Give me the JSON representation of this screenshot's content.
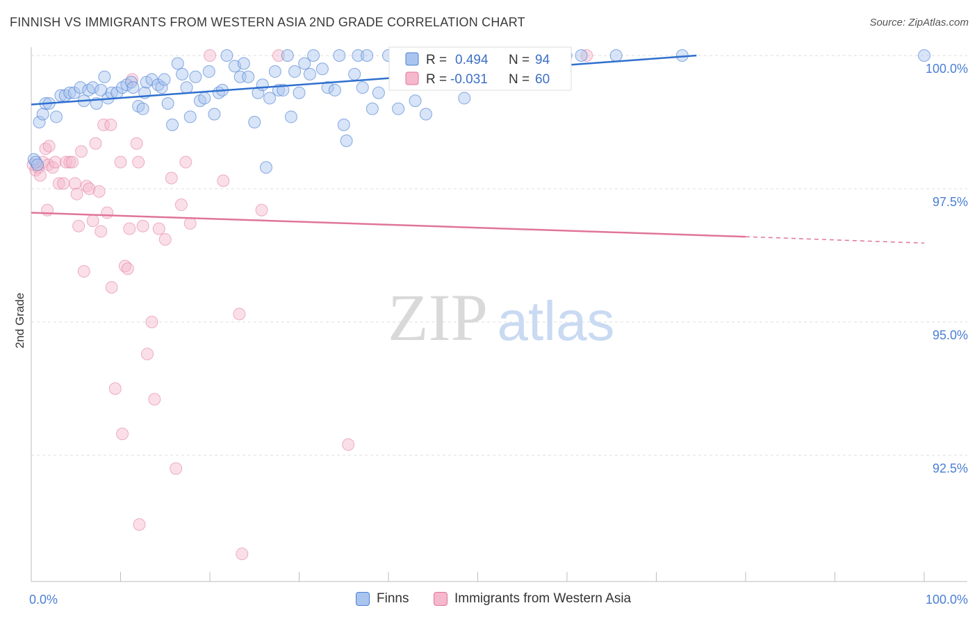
{
  "header": {
    "title": "FINNISH VS IMMIGRANTS FROM WESTERN ASIA 2ND GRADE CORRELATION CHART",
    "source": "Source: ZipAtlas.com"
  },
  "watermark": {
    "zip": "ZIP",
    "atlas": "atlas"
  },
  "legend_top": {
    "rows": [
      {
        "r_label": "R =",
        "r_value": "0.494",
        "n_label": "N =",
        "n_value": "94"
      },
      {
        "r_label": "R =",
        "r_value": "-0.031",
        "n_label": "N =",
        "n_value": "60"
      }
    ]
  },
  "chart_data": {
    "type": "scatter",
    "title": "FINNISH VS IMMIGRANTS FROM WESTERN ASIA 2ND GRADE CORRELATION CHART",
    "xlabel": "",
    "ylabel": "2nd Grade",
    "xlim": [
      0,
      100
    ],
    "ylim": [
      90.25,
      100.35
    ],
    "x_tick_labels": [
      "0.0%",
      "100.0%"
    ],
    "y_ticks": [
      92.5,
      95.0,
      97.5,
      100.0
    ],
    "y_tick_labels": [
      "92.5%",
      "95.0%",
      "97.5%",
      "100.0%"
    ],
    "grid": true,
    "legend_placement": "bottom",
    "colors": {
      "finns": "#4a7fd4",
      "finns_fill": "#a9c4ee",
      "wa": "#e0749a",
      "wa_fill": "#f5b8cc"
    },
    "series": [
      {
        "name": "Finns",
        "r": 0.494,
        "n": 94,
        "trend": {
          "x": [
            0,
            74.5
          ],
          "y": [
            99.08,
            100.0
          ]
        },
        "points": [
          [
            0.3,
            98.05
          ],
          [
            0.5,
            98.0
          ],
          [
            0.7,
            97.95
          ],
          [
            0.9,
            98.75
          ],
          [
            1.3,
            98.9
          ],
          [
            1.6,
            99.1
          ],
          [
            2.0,
            99.1
          ],
          [
            2.8,
            98.85
          ],
          [
            3.3,
            99.25
          ],
          [
            3.8,
            99.25
          ],
          [
            4.3,
            99.3
          ],
          [
            4.8,
            99.3
          ],
          [
            5.5,
            99.4
          ],
          [
            5.9,
            99.15
          ],
          [
            6.4,
            99.35
          ],
          [
            6.9,
            99.4
          ],
          [
            7.3,
            99.1
          ],
          [
            7.8,
            99.35
          ],
          [
            8.2,
            99.6
          ],
          [
            8.6,
            99.2
          ],
          [
            9.0,
            99.3
          ],
          [
            9.6,
            99.3
          ],
          [
            10.2,
            99.4
          ],
          [
            10.7,
            99.45
          ],
          [
            11.2,
            99.5
          ],
          [
            11.4,
            99.4
          ],
          [
            12.0,
            99.05
          ],
          [
            12.5,
            99.0
          ],
          [
            12.7,
            99.3
          ],
          [
            12.9,
            99.5
          ],
          [
            13.5,
            99.55
          ],
          [
            14.2,
            99.45
          ],
          [
            14.6,
            99.4
          ],
          [
            14.9,
            99.55
          ],
          [
            15.3,
            99.1
          ],
          [
            15.8,
            98.7
          ],
          [
            16.4,
            99.85
          ],
          [
            16.9,
            99.65
          ],
          [
            17.4,
            99.4
          ],
          [
            17.8,
            98.85
          ],
          [
            18.4,
            99.6
          ],
          [
            18.9,
            99.15
          ],
          [
            19.4,
            99.2
          ],
          [
            19.9,
            99.7
          ],
          [
            20.5,
            98.9
          ],
          [
            21.0,
            99.3
          ],
          [
            21.4,
            99.35
          ],
          [
            21.9,
            100.0
          ],
          [
            22.8,
            99.8
          ],
          [
            23.4,
            99.6
          ],
          [
            23.8,
            99.85
          ],
          [
            24.3,
            99.6
          ],
          [
            25.0,
            98.75
          ],
          [
            25.4,
            99.3
          ],
          [
            25.9,
            99.45
          ],
          [
            26.3,
            97.9
          ],
          [
            26.7,
            99.2
          ],
          [
            27.3,
            99.7
          ],
          [
            27.7,
            99.35
          ],
          [
            28.2,
            99.35
          ],
          [
            28.7,
            100.0
          ],
          [
            29.1,
            98.85
          ],
          [
            29.5,
            99.7
          ],
          [
            30.0,
            99.3
          ],
          [
            30.6,
            99.85
          ],
          [
            31.2,
            99.65
          ],
          [
            31.6,
            100.0
          ],
          [
            32.6,
            99.75
          ],
          [
            33.2,
            99.4
          ],
          [
            34.0,
            99.35
          ],
          [
            34.5,
            100.0
          ],
          [
            35.0,
            98.7
          ],
          [
            35.3,
            98.4
          ],
          [
            36.2,
            99.65
          ],
          [
            36.6,
            100.0
          ],
          [
            37.1,
            99.4
          ],
          [
            37.6,
            100.0
          ],
          [
            38.2,
            99.0
          ],
          [
            38.9,
            99.3
          ],
          [
            40.0,
            100.0
          ],
          [
            41.1,
            99.0
          ],
          [
            41.8,
            100.0
          ],
          [
            43.0,
            99.15
          ],
          [
            44.2,
            98.9
          ],
          [
            45.8,
            100.0
          ],
          [
            48.5,
            99.2
          ],
          [
            50.0,
            100.0
          ],
          [
            54.0,
            100.0
          ],
          [
            55.3,
            100.0
          ],
          [
            59.9,
            100.0
          ],
          [
            61.6,
            100.0
          ],
          [
            65.5,
            100.0
          ],
          [
            72.9,
            100.0
          ],
          [
            100.0,
            100.0
          ]
        ]
      },
      {
        "name": "Immigrants from Western Asia",
        "r": -0.031,
        "n": 60,
        "trend": {
          "x": [
            0,
            80
          ],
          "y": [
            97.05,
            96.6
          ]
        },
        "trend_dashed": {
          "x": [
            80,
            100
          ],
          "y": [
            96.6,
            96.48
          ]
        },
        "points": [
          [
            0.2,
            97.95
          ],
          [
            0.5,
            97.85
          ],
          [
            0.8,
            97.9
          ],
          [
            1.0,
            97.75
          ],
          [
            1.3,
            98.0
          ],
          [
            1.6,
            98.25
          ],
          [
            1.8,
            97.1
          ],
          [
            1.9,
            97.95
          ],
          [
            2.0,
            98.3
          ],
          [
            2.4,
            97.9
          ],
          [
            2.7,
            98.0
          ],
          [
            3.1,
            97.6
          ],
          [
            3.6,
            97.6
          ],
          [
            3.9,
            98.0
          ],
          [
            4.3,
            98.0
          ],
          [
            4.6,
            98.0
          ],
          [
            4.9,
            97.6
          ],
          [
            5.1,
            97.4
          ],
          [
            5.3,
            96.8
          ],
          [
            5.6,
            98.2
          ],
          [
            5.9,
            95.95
          ],
          [
            6.2,
            97.55
          ],
          [
            6.5,
            97.5
          ],
          [
            6.9,
            96.9
          ],
          [
            7.2,
            98.35
          ],
          [
            7.6,
            97.45
          ],
          [
            7.8,
            96.7
          ],
          [
            8.1,
            98.7
          ],
          [
            8.5,
            97.05
          ],
          [
            8.9,
            98.7
          ],
          [
            9.0,
            95.65
          ],
          [
            9.4,
            93.75
          ],
          [
            10.0,
            98.0
          ],
          [
            10.2,
            92.9
          ],
          [
            10.5,
            96.05
          ],
          [
            10.8,
            96.0
          ],
          [
            11.0,
            96.75
          ],
          [
            11.3,
            99.55
          ],
          [
            11.8,
            98.35
          ],
          [
            12.0,
            98.0
          ],
          [
            12.5,
            96.8
          ],
          [
            13.0,
            94.4
          ],
          [
            13.5,
            95.0
          ],
          [
            13.8,
            93.55
          ],
          [
            14.3,
            96.75
          ],
          [
            15.0,
            96.55
          ],
          [
            15.7,
            97.7
          ],
          [
            16.2,
            92.25
          ],
          [
            16.8,
            97.2
          ],
          [
            17.3,
            98.0
          ],
          [
            17.8,
            96.85
          ],
          [
            20.0,
            100.0
          ],
          [
            21.5,
            97.65
          ],
          [
            23.3,
            95.15
          ],
          [
            23.6,
            90.65
          ],
          [
            25.8,
            97.1
          ],
          [
            27.7,
            100.0
          ],
          [
            35.5,
            92.7
          ],
          [
            62.2,
            100.0
          ],
          [
            12.1,
            91.2
          ]
        ]
      }
    ]
  }
}
